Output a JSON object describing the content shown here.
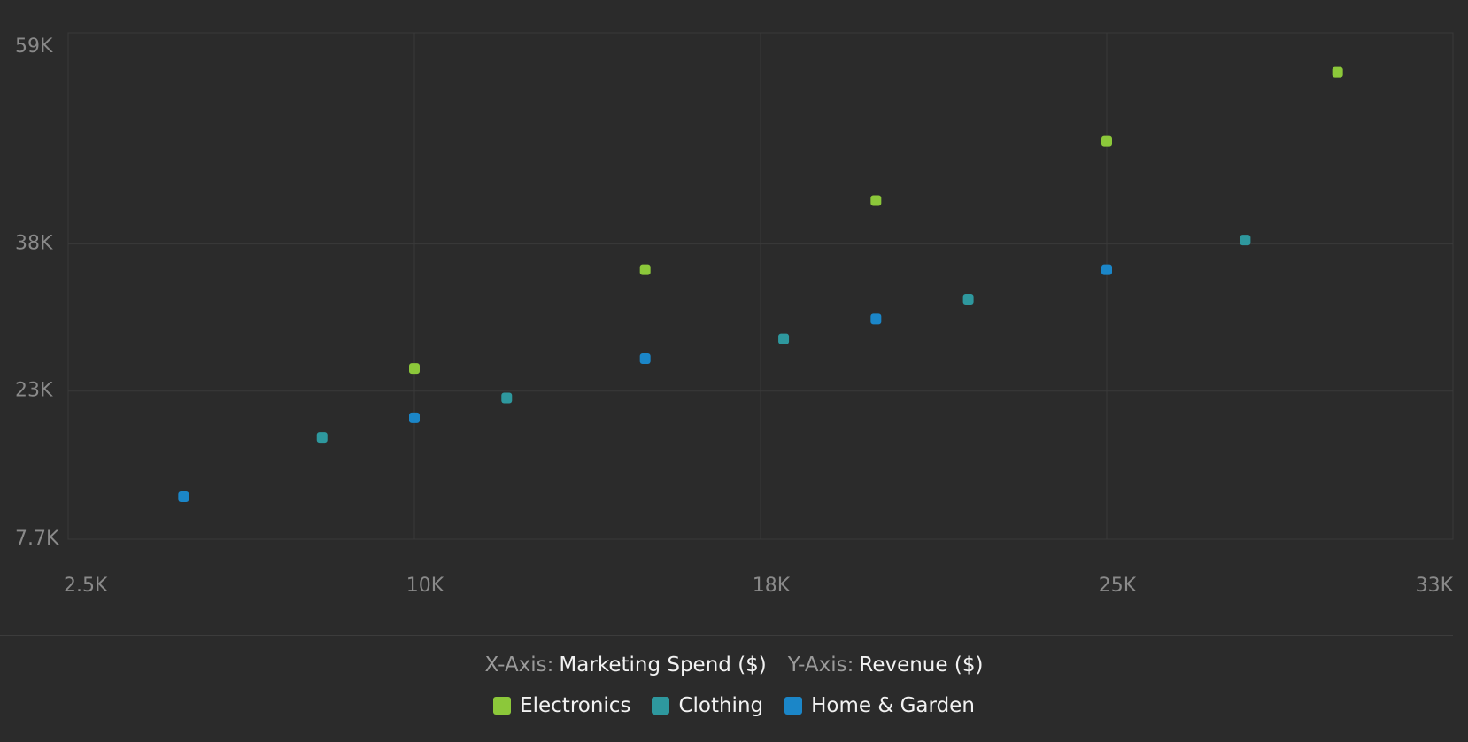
{
  "chart_data": {
    "type": "scatter",
    "xlabel_prefix": "X-Axis:",
    "xlabel": "Marketing Spend ($)",
    "ylabel_prefix": "Y-Axis:",
    "ylabel": "Revenue ($)",
    "xlim": [
      2500,
      32500
    ],
    "xticks": [
      {
        "value": 2500,
        "label": "2.5K"
      },
      {
        "value": 10000,
        "label": "10K"
      },
      {
        "value": 17500,
        "label": "18K"
      },
      {
        "value": 25000,
        "label": "25K"
      },
      {
        "value": 32500,
        "label": "33K"
      }
    ],
    "ylim": [
      7700,
      59000
    ],
    "yticks": [
      {
        "value": 7700,
        "label": "7.7K"
      },
      {
        "value": 22700,
        "label": "23K"
      },
      {
        "value": 37600,
        "label": "38K"
      },
      {
        "value": 59000,
        "label": "59K"
      }
    ],
    "grid": true,
    "series": [
      {
        "name": "Electronics",
        "color": "#8cc83a",
        "x": [
          10000,
          15000,
          20000,
          25000,
          30000
        ],
        "y": [
          25000,
          35000,
          42000,
          48000,
          55000
        ]
      },
      {
        "name": "Clothing",
        "color": "#2e989e",
        "x": [
          8000,
          12000,
          18000,
          22000,
          28000
        ],
        "y": [
          18000,
          22000,
          28000,
          32000,
          38000
        ]
      },
      {
        "name": "Home & Garden",
        "color": "#1b86c8",
        "x": [
          5000,
          10000,
          15000,
          20000,
          25000
        ],
        "y": [
          12000,
          20000,
          26000,
          30000,
          35000
        ]
      }
    ]
  }
}
